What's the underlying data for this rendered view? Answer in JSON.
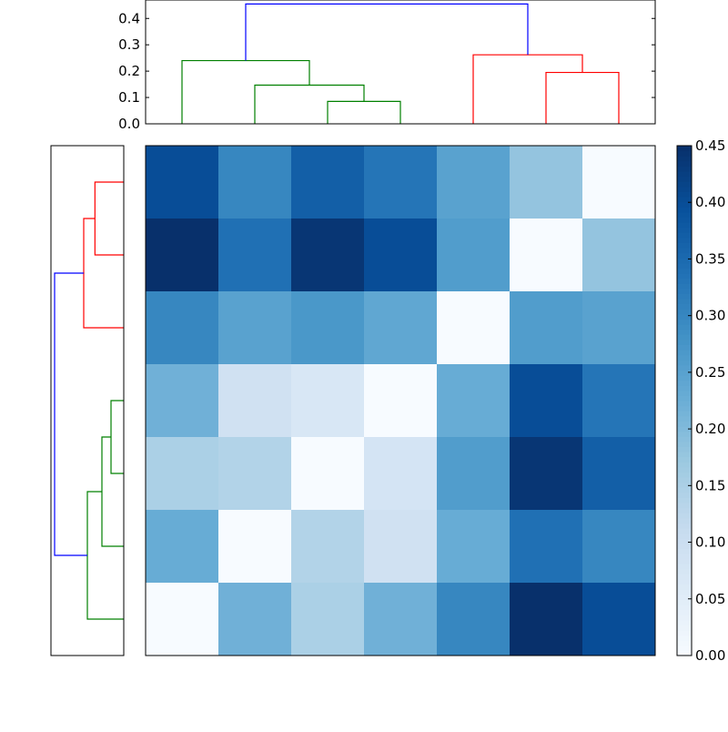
{
  "chart_data": [
    {
      "type": "heatmap",
      "colormap": "Blues",
      "vmin": 0,
      "vmax": 0.45,
      "rows": 7,
      "cols": 7,
      "values": [
        [
          0.4,
          0.3,
          0.37,
          0.33,
          0.25,
          0.18,
          0.0
        ],
        [
          0.45,
          0.34,
          0.44,
          0.4,
          0.26,
          0.0,
          0.18
        ],
        [
          0.3,
          0.25,
          0.27,
          0.24,
          0.0,
          0.26,
          0.25
        ],
        [
          0.22,
          0.09,
          0.07,
          0.0,
          0.23,
          0.4,
          0.33
        ],
        [
          0.15,
          0.14,
          0.0,
          0.08,
          0.26,
          0.44,
          0.37
        ],
        [
          0.23,
          0.0,
          0.14,
          0.09,
          0.23,
          0.34,
          0.3
        ],
        [
          0.0,
          0.22,
          0.15,
          0.22,
          0.3,
          0.45,
          0.4
        ]
      ],
      "colorbar_ticks": [
        "0.00",
        "0.05",
        "0.10",
        "0.15",
        "0.20",
        "0.25",
        "0.30",
        "0.35",
        "0.40",
        "0.45"
      ]
    },
    {
      "type": "dendrogram",
      "orientation": "top",
      "ylim": [
        0,
        0.47
      ],
      "yticks": [
        "0.0",
        "0.1",
        "0.2",
        "0.3",
        "0.4"
      ],
      "links": [
        {
          "x": [
            25,
            25,
            35,
            35
          ],
          "y": [
            0,
            0.085,
            0.085,
            0
          ],
          "color": "#008000"
        },
        {
          "x": [
            15,
            15,
            30,
            30
          ],
          "y": [
            0,
            0.147,
            0.147,
            0.085
          ],
          "color": "#008000"
        },
        {
          "x": [
            5,
            5,
            22.5,
            22.5
          ],
          "y": [
            0,
            0.24,
            0.24,
            0.147
          ],
          "color": "#008000"
        },
        {
          "x": [
            55,
            55,
            65,
            65
          ],
          "y": [
            0,
            0.195,
            0.195,
            0
          ],
          "color": "#ff0000"
        },
        {
          "x": [
            45,
            45,
            60,
            60
          ],
          "y": [
            0,
            0.262,
            0.262,
            0.195
          ],
          "color": "#ff0000"
        },
        {
          "x": [
            13.75,
            13.75,
            52.5,
            52.5
          ],
          "y": [
            0.24,
            0.455,
            0.455,
            0.262
          ],
          "color": "#0000ff"
        }
      ]
    },
    {
      "type": "dendrogram",
      "orientation": "left",
      "xlim": [
        0,
        0.48
      ],
      "links": [
        {
          "x": [
            5,
            5,
            15,
            15
          ],
          "y": [
            0,
            0.19,
            0.19,
            0
          ],
          "color": "#ff0000"
        },
        {
          "x": [
            10,
            10,
            25,
            25
          ],
          "y": [
            0.19,
            0.264,
            0.264,
            0
          ],
          "color": "#ff0000"
        },
        {
          "x": [
            35,
            35,
            45,
            45
          ],
          "y": [
            0,
            0.084,
            0.084,
            0
          ],
          "color": "#008000"
        },
        {
          "x": [
            40,
            40,
            55,
            55
          ],
          "y": [
            0.084,
            0.144,
            0.144,
            0
          ],
          "color": "#008000"
        },
        {
          "x": [
            47.5,
            47.5,
            65,
            65
          ],
          "y": [
            0.144,
            0.24,
            0.24,
            0
          ],
          "color": "#008000"
        },
        {
          "x": [
            17.5,
            17.5,
            56.25,
            56.25
          ],
          "y": [
            0.264,
            0.456,
            0.456,
            0.24
          ],
          "color": "#0000ff"
        }
      ]
    }
  ]
}
